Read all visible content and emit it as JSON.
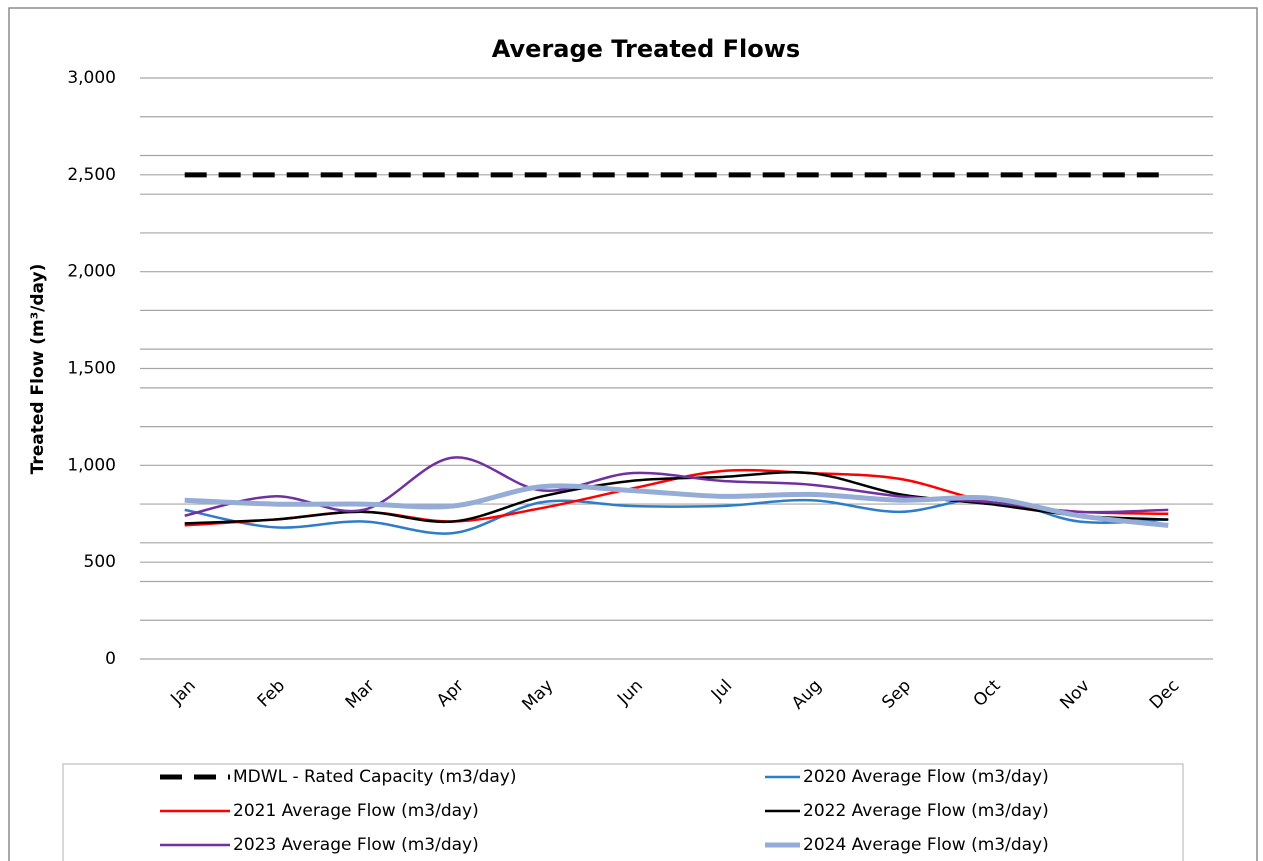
{
  "chart_data": {
    "type": "line",
    "title": "Average Treated Flows",
    "y_label": "Treated Flow (m³/day)",
    "categories": [
      "Jan",
      "Feb",
      "Mar",
      "Apr",
      "May",
      "Jun",
      "Jul",
      "Aug",
      "Sep",
      "Oct",
      "Nov",
      "Dec"
    ],
    "ylim": [
      0,
      3000
    ],
    "yticks": [
      0,
      500,
      {
        "value": 1000,
        "label": "1,000"
      },
      {
        "value": 1500,
        "label": "1,500"
      },
      {
        "value": 2000,
        "label": "2,000"
      },
      {
        "value": 2500,
        "label": "2,500"
      },
      {
        "value": 3000,
        "label": "3,000"
      }
    ],
    "minor_gridlines": [
      200,
      400,
      600,
      800,
      1200,
      1400,
      1600,
      1800,
      2200,
      2400,
      2600,
      2800
    ],
    "grid": true,
    "smooth": true,
    "series": [
      {
        "name": "MDWL - Rated Capacity (m3/day)",
        "color": "#000000",
        "dashed": true,
        "width": 5,
        "values": [
          2500,
          2500,
          2500,
          2500,
          2500,
          2500,
          2500,
          2500,
          2500,
          2500,
          2500,
          2500
        ]
      },
      {
        "name": "2020 Average Flow (m3/day)",
        "color": "#2e7dc8",
        "width": 2.5,
        "values": [
          770,
          680,
          710,
          650,
          810,
          790,
          790,
          820,
          760,
          830,
          710,
          720
        ]
      },
      {
        "name": "2021 Average Flow (m3/day)",
        "color": "#ff0000",
        "width": 2.5,
        "values": [
          690,
          720,
          760,
          710,
          780,
          880,
          970,
          960,
          930,
          810,
          760,
          750
        ]
      },
      {
        "name": "2022 Average Flow (m3/day)",
        "color": "#000000",
        "width": 2.5,
        "values": [
          700,
          720,
          760,
          710,
          840,
          920,
          940,
          960,
          850,
          800,
          740,
          720
        ]
      },
      {
        "name": "2023 Average Flow (m3/day)",
        "color": "#7030a0",
        "width": 2.5,
        "values": [
          740,
          840,
          770,
          1040,
          870,
          960,
          920,
          900,
          840,
          810,
          760,
          770
        ]
      },
      {
        "name": "2024 Average Flow (m3/day)",
        "color": "#95acd6",
        "width": 5,
        "values": [
          820,
          800,
          800,
          790,
          890,
          870,
          840,
          850,
          820,
          830,
          740,
          690
        ]
      }
    ]
  }
}
